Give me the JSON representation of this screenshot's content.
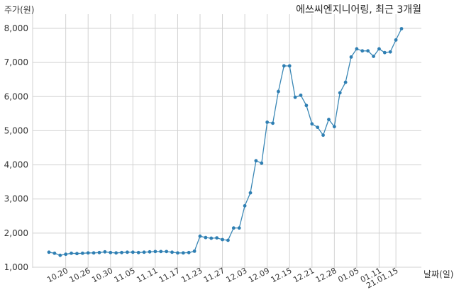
{
  "chart_data": {
    "type": "line",
    "title": "에쓰씨엔지니어링, 최근 3개월",
    "ylabel": "주가(원)",
    "xlabel": "날짜(일)",
    "ylim": [
      1000,
      8400
    ],
    "yticks": [
      1000,
      2000,
      3000,
      4000,
      5000,
      6000,
      7000,
      8000
    ],
    "ytick_labels": [
      "1,000",
      "2,000",
      "3,000",
      "4,000",
      "5,000",
      "6,000",
      "7,000",
      "8,000"
    ],
    "grid": true,
    "x_tick_labels": [
      "10.20",
      "10.26",
      "10.30",
      "11.05",
      "11.11",
      "11.17",
      "11.23",
      "11.27",
      "12.03",
      "12.09",
      "12.15",
      "12.21",
      "12.28",
      "01.05",
      "01.11",
      "21.01.15"
    ],
    "x_tick_indices": [
      3,
      7,
      11,
      15,
      19,
      23,
      27,
      31,
      35,
      39,
      43,
      47,
      51,
      55,
      59,
      62
    ],
    "series": [
      {
        "color": "#3a87b5",
        "values": [
          1440,
          1410,
          1350,
          1380,
          1410,
          1400,
          1410,
          1420,
          1420,
          1430,
          1450,
          1430,
          1420,
          1430,
          1440,
          1440,
          1430,
          1440,
          1450,
          1460,
          1460,
          1460,
          1440,
          1420,
          1420,
          1430,
          1470,
          1910,
          1870,
          1850,
          1860,
          1810,
          1790,
          2150,
          2150,
          2800,
          3180,
          4120,
          4050,
          5250,
          5220,
          6150,
          6900,
          6900,
          5980,
          6040,
          5740,
          5200,
          5100,
          4870,
          5330,
          5120,
          6110,
          6420,
          7160,
          7400,
          7340,
          7340,
          7180,
          7400,
          7290,
          7310,
          7660,
          7990
        ]
      }
    ]
  }
}
